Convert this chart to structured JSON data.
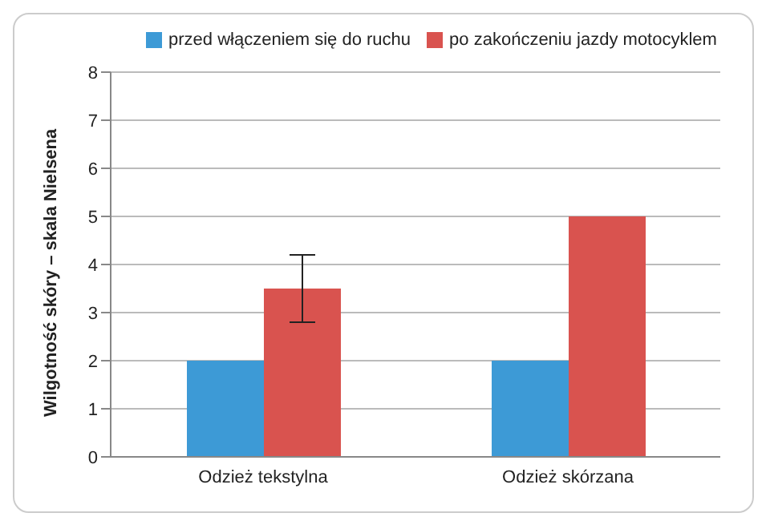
{
  "chart_data": {
    "type": "bar",
    "ylabel": "Wilgotność skóry – skala Nielsena",
    "categories": [
      "Odzież tekstylna",
      "Odzież skórzana"
    ],
    "series": [
      {
        "name": "przed włączeniem się do ruchu",
        "color": "#3d9ad6",
        "values": [
          2,
          2
        ]
      },
      {
        "name": "po zakończeniu jazdy motocyklem",
        "color": "#d9534f",
        "values": [
          3.5,
          5
        ],
        "errors": [
          [
            2.8,
            4.2
          ],
          null
        ]
      }
    ],
    "ylim": [
      0,
      8
    ],
    "yticks": [
      0,
      1,
      2,
      3,
      4,
      5,
      6,
      7,
      8
    ],
    "grid": "y",
    "legend": "top"
  }
}
